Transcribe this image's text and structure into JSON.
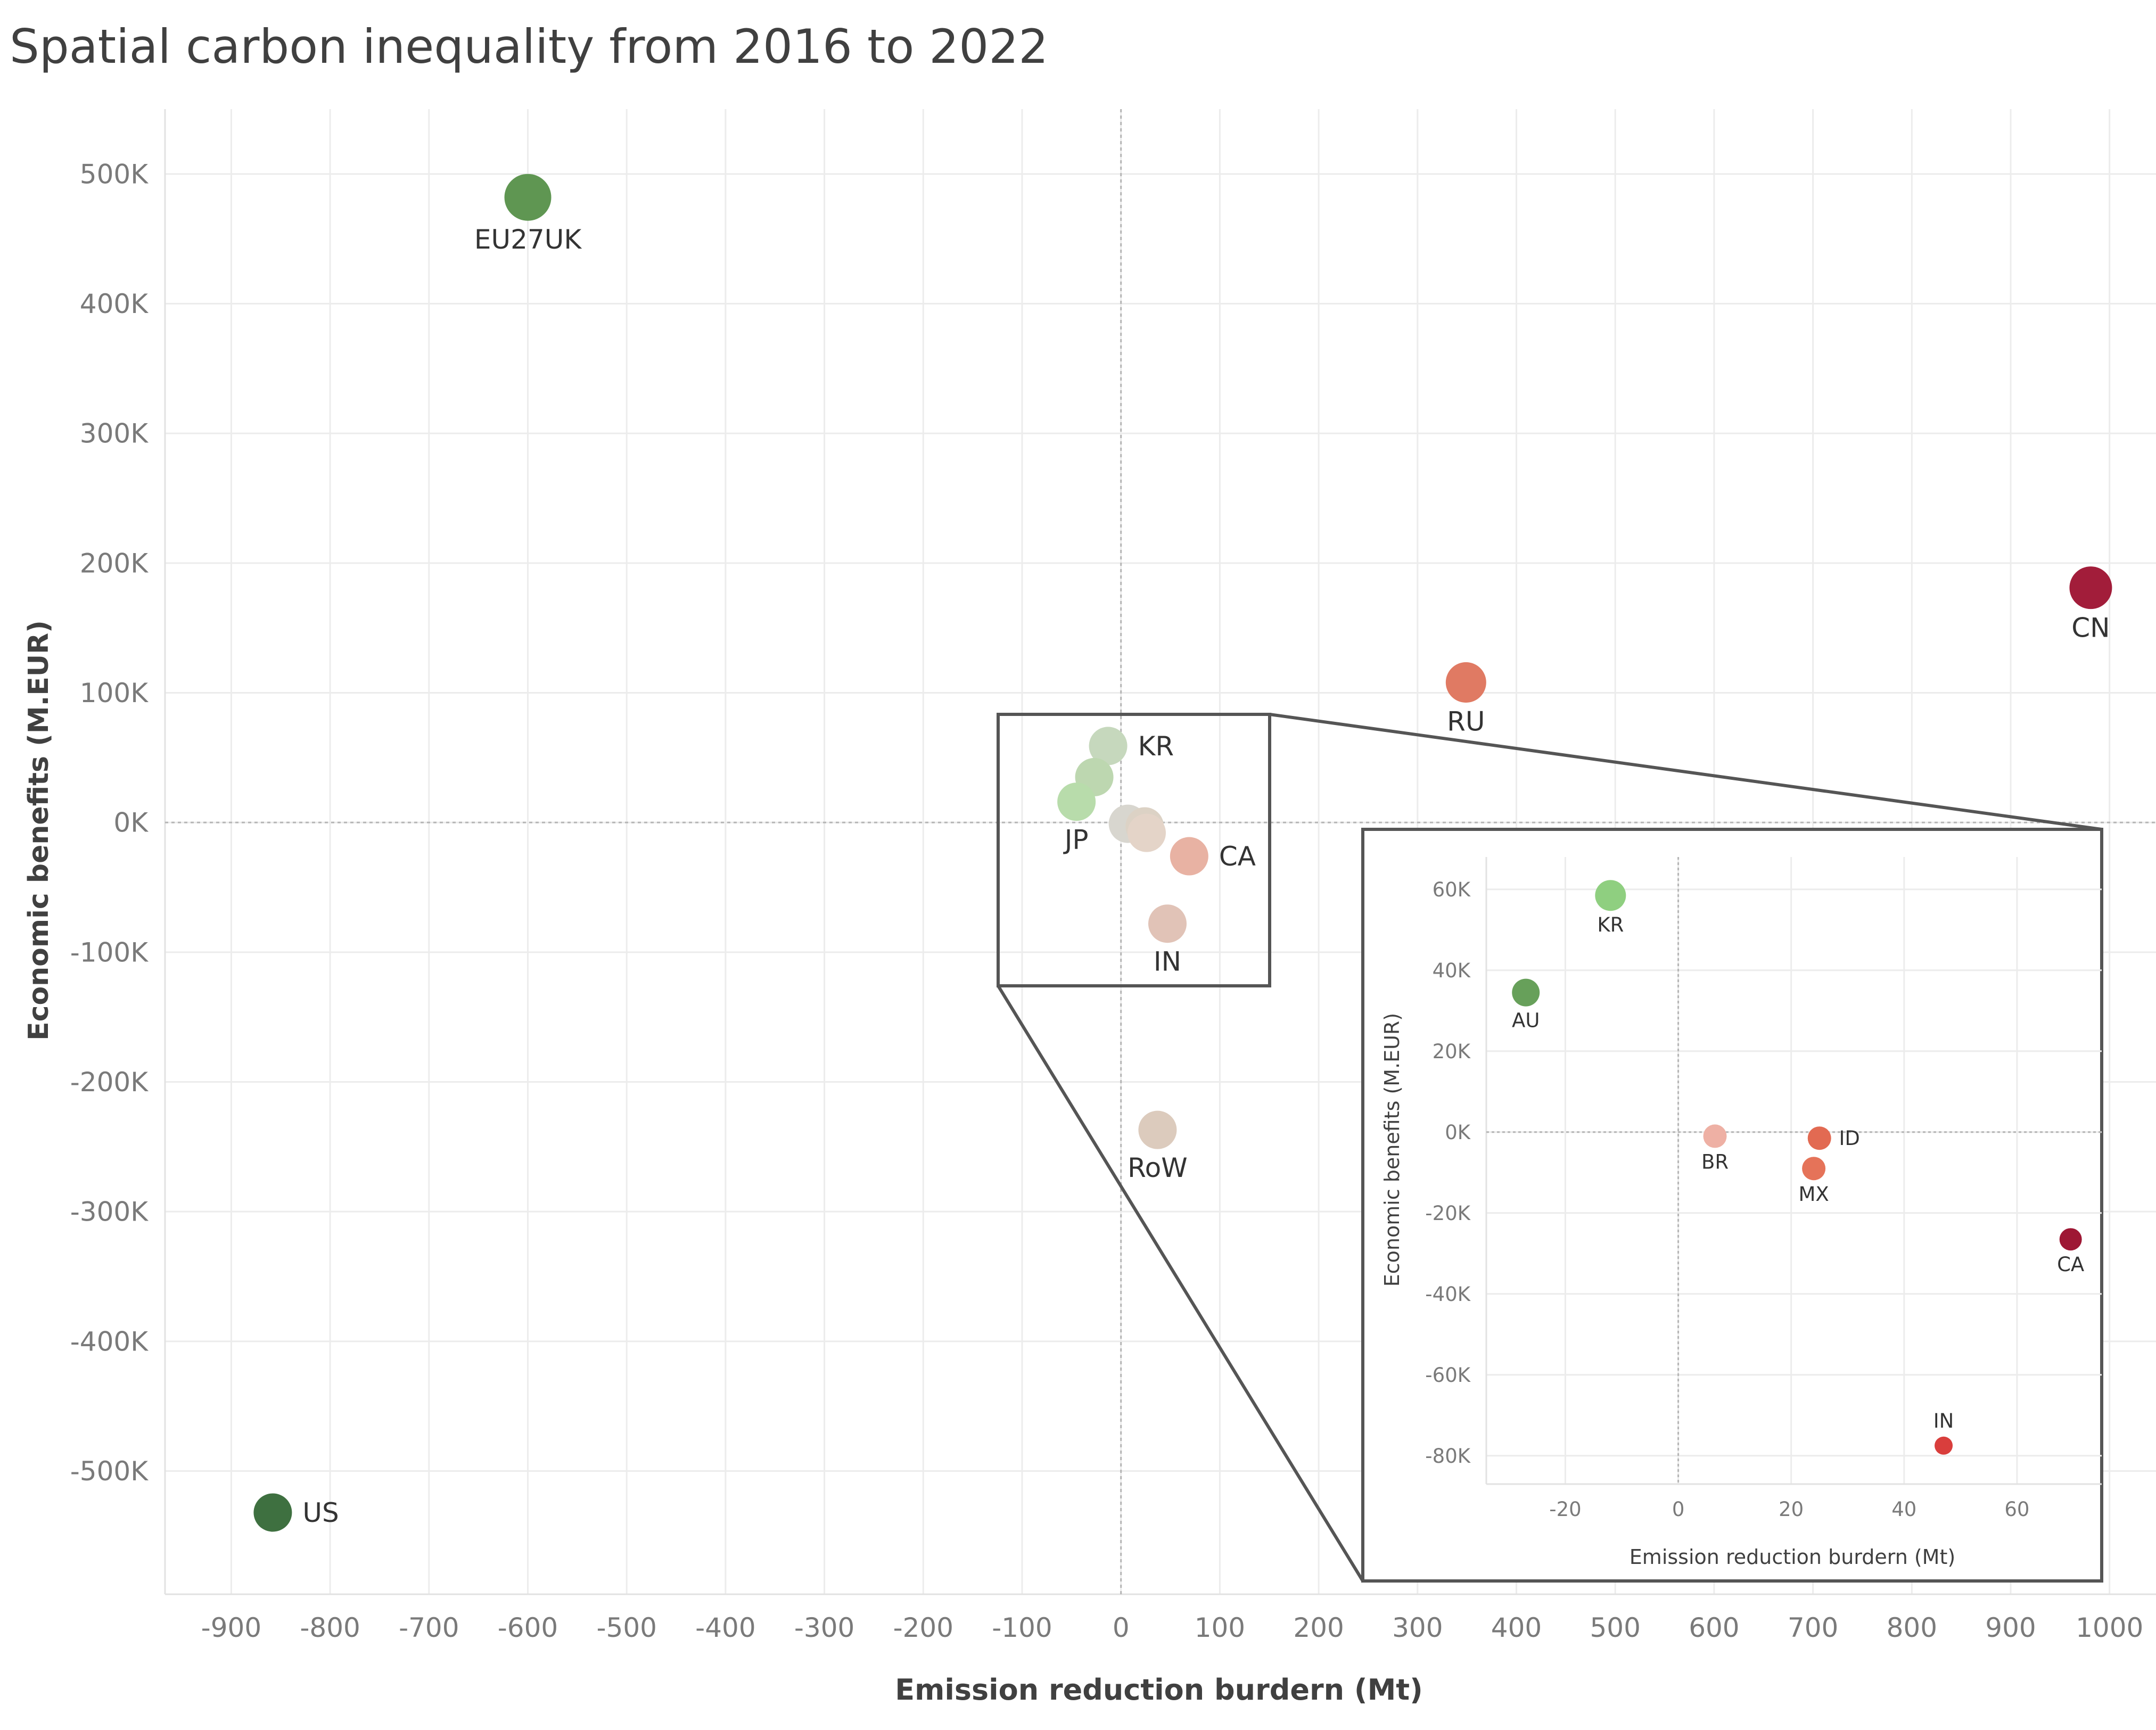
{
  "chart_data": [
    {
      "type": "scatter",
      "title": "Spatial carbon inequality from 2016 to 2022",
      "xlabel": "Emission reduction burdern (Mt)",
      "ylabel": "Economic benefits (M.EUR)",
      "xlim": [
        -967,
        1047
      ],
      "ylim": [
        -595000,
        550000
      ],
      "xticks": [
        -900,
        -800,
        -700,
        -600,
        -500,
        -400,
        -300,
        -200,
        -100,
        0,
        100,
        200,
        300,
        400,
        500,
        600,
        700,
        800,
        900,
        1000
      ],
      "yticks": [
        -500000,
        -400000,
        -300000,
        -200000,
        -100000,
        0,
        100000,
        200000,
        300000,
        400000,
        500000
      ],
      "ytick_labels": [
        "-500K",
        "-400K",
        "-300K",
        "-200K",
        "-100K",
        "0K",
        "100K",
        "200K",
        "300K",
        "400K",
        "500K"
      ],
      "grid": true,
      "points": [
        {
          "label": "EU27UK",
          "x": -600,
          "y": 482000,
          "color": "#5f9652",
          "r": 44,
          "label_pos": "below"
        },
        {
          "label": "US",
          "x": -858,
          "y": -532000,
          "color": "#3e7040",
          "r": 36,
          "label_pos": "right"
        },
        {
          "label": "CN",
          "x": 981,
          "y": 181000,
          "color": "#a21d3a",
          "r": 40,
          "label_pos": "below"
        },
        {
          "label": "RU",
          "x": 349,
          "y": 108000,
          "color": "#e07a63",
          "r": 38,
          "label_pos": "below"
        },
        {
          "label": "KR",
          "x": -13,
          "y": 59000,
          "color": "#c6d8bd",
          "r": 36,
          "label_pos": "right"
        },
        {
          "label": "",
          "x": -27,
          "y": 35000,
          "color": "#bdd7b0",
          "r": 36,
          "label_pos": "none"
        },
        {
          "label": "JP",
          "x": -45,
          "y": 16000,
          "color": "#b8dcab",
          "r": 36,
          "label_pos": "below"
        },
        {
          "label": "",
          "x": 7,
          "y": -1000,
          "color": "#d8d6cf",
          "r": 36,
          "label_pos": "none"
        },
        {
          "label": "",
          "x": 24,
          "y": -3000,
          "color": "#dcd2c5",
          "r": 36,
          "label_pos": "none"
        },
        {
          "label": "",
          "x": 26,
          "y": -8000,
          "color": "#e4d4c8",
          "r": 36,
          "label_pos": "none"
        },
        {
          "label": "CA",
          "x": 69,
          "y": -26000,
          "color": "#e8b2a3",
          "r": 36,
          "label_pos": "right"
        },
        {
          "label": "IN",
          "x": 47,
          "y": -78000,
          "color": "#e1c3b7",
          "r": 36,
          "label_pos": "below"
        },
        {
          "label": "RoW",
          "x": 37,
          "y": -237000,
          "color": "#dccbbd",
          "r": 36,
          "label_pos": "below"
        }
      ]
    },
    {
      "type": "scatter",
      "title": "",
      "xlabel": "Emission reduction burdern (Mt)",
      "ylabel": "Economic benefits (M.EUR)",
      "xlim": [
        -34,
        75
      ],
      "ylim": [
        -87000,
        68000
      ],
      "xticks": [
        -20,
        0,
        20,
        40,
        60
      ],
      "yticks": [
        -80000,
        -60000,
        -40000,
        -20000,
        0,
        20000,
        40000,
        60000
      ],
      "ytick_labels": [
        "-80K",
        "-60K",
        "-40K",
        "-20K",
        "0K",
        "20K",
        "40K",
        "60K"
      ],
      "grid": true,
      "points": [
        {
          "label": "KR",
          "x": -12,
          "y": 58500,
          "color": "#8fcf80",
          "r": 29,
          "label_pos": "below"
        },
        {
          "label": "AU",
          "x": -27,
          "y": 34500,
          "color": "#67a05a",
          "r": 26,
          "label_pos": "below"
        },
        {
          "label": "BR",
          "x": 6.5,
          "y": -1000,
          "color": "#eeb0a4",
          "r": 22,
          "label_pos": "below"
        },
        {
          "label": "ID",
          "x": 25,
          "y": -1500,
          "color": "#e26a52",
          "r": 22,
          "label_pos": "right"
        },
        {
          "label": "MX",
          "x": 24,
          "y": -9000,
          "color": "#e57359",
          "r": 22,
          "label_pos": "below"
        },
        {
          "label": "CA",
          "x": 69.5,
          "y": -26500,
          "color": "#9e1734",
          "r": 21,
          "label_pos": "below"
        },
        {
          "label": "IN",
          "x": 47,
          "y": -77500,
          "color": "#d93e3c",
          "r": 17,
          "label_pos": "above"
        }
      ]
    }
  ]
}
